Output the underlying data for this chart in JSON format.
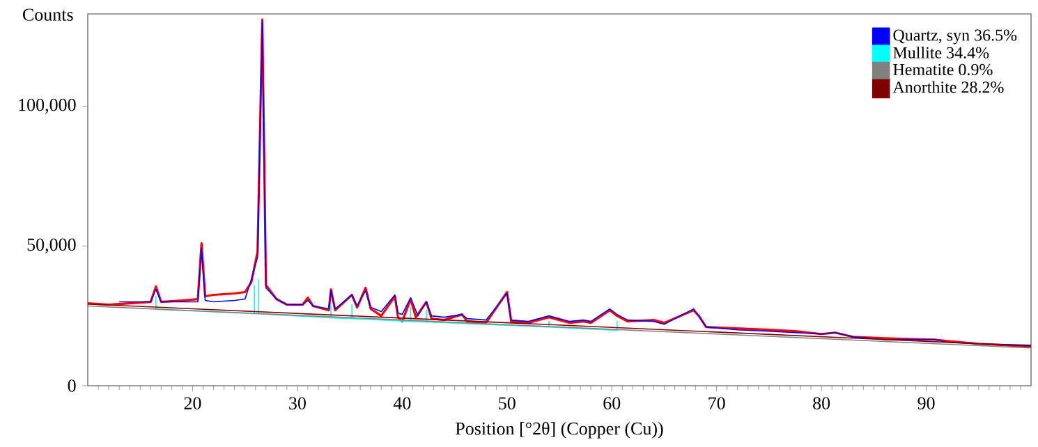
{
  "chart_data": {
    "type": "line",
    "ylabel": "Counts",
    "xlabel": "Position [°2θ] (Copper (Cu))",
    "xlim": [
      10,
      100
    ],
    "xticks": [
      20,
      30,
      40,
      50,
      60,
      70,
      80,
      90
    ],
    "ylim": [
      0,
      133000
    ],
    "yticks": [
      0,
      {
        "value": 50000,
        "label": "50,000"
      },
      {
        "value": 100000,
        "label": "100,000"
      }
    ],
    "legend": "top right",
    "grid": false,
    "marker": "none",
    "line_style": "solid",
    "series": [
      {
        "color": "#ff0000",
        "x": [
          10,
          12,
          14,
          16,
          16.5,
          17,
          19,
          20.5,
          20.85,
          21.2,
          22,
          24,
          25,
          25.6,
          26.2,
          26.65,
          27,
          28,
          29,
          30.5,
          31,
          31.5,
          33,
          33.2,
          33.6,
          35.2,
          35.7,
          36.5,
          37,
          38,
          39.3,
          39.6,
          40,
          40.8,
          41.3,
          42.3,
          42.8,
          44,
          45.7,
          46.2,
          48,
          50,
          50.4,
          52,
          54,
          54.5,
          56,
          57.3,
          58,
          59.8,
          60.5,
          61.5,
          64,
          65,
          67.8,
          68.3,
          69,
          72,
          75,
          77.5,
          80,
          81.3,
          83,
          86,
          90.8,
          92,
          95,
          100
        ],
        "values": [
          29500,
          29000,
          29500,
          30000,
          35500,
          30000,
          30500,
          31000,
          51000,
          32000,
          32500,
          33000,
          33500,
          37000,
          48000,
          131000,
          36000,
          31000,
          29000,
          29000,
          31500,
          28500,
          27000,
          34500,
          27000,
          32500,
          28000,
          35000,
          27500,
          25000,
          32000,
          24500,
          23000,
          31000,
          24500,
          30000,
          24000,
          23500,
          25500,
          23000,
          22500,
          33500,
          23000,
          22500,
          24500,
          24000,
          22500,
          23000,
          22500,
          27000,
          25000,
          23000,
          23500,
          22500,
          27000,
          25000,
          21000,
          20500,
          20000,
          19500,
          18500,
          19000,
          17500,
          17000,
          16500,
          16000,
          15000,
          14000
        ]
      },
      {
        "name": "Quartz, syn 36.5%",
        "color": "#0000ff",
        "x": [
          13,
          16,
          16.5,
          17,
          19,
          20.5,
          20.85,
          21.2,
          22,
          24,
          25,
          25.6,
          26.2,
          26.65,
          27,
          27.5,
          28,
          29,
          30.5,
          31,
          31.5,
          33,
          33.2,
          33.6,
          35.2,
          35.7,
          36.5,
          37,
          38,
          39.3,
          39.6,
          40,
          40.8,
          41.5,
          42.3,
          42.8,
          44,
          45.7,
          46.2,
          48,
          50,
          50.4,
          52,
          54,
          54.5,
          56,
          57.3,
          58,
          59.8,
          60.5,
          61.5,
          64,
          65,
          67.8,
          68.3,
          69,
          72,
          75,
          77.5,
          80,
          81.3,
          83,
          86,
          90.8,
          92,
          95,
          100
        ],
        "values": [
          30000,
          30000,
          34500,
          30000,
          30000,
          30000,
          49000,
          30500,
          30000,
          30500,
          31000,
          38000,
          46000,
          130000,
          35000,
          33000,
          31000,
          29000,
          29000,
          30500,
          28500,
          27500,
          34000,
          27500,
          32500,
          28500,
          34000,
          28000,
          26500,
          32500,
          26000,
          25500,
          31500,
          25000,
          30000,
          25000,
          24500,
          25500,
          24000,
          23500,
          33000,
          23500,
          23000,
          25000,
          24500,
          23000,
          23500,
          23000,
          27500,
          25500,
          23500,
          23000,
          22000,
          27500,
          25000,
          21000,
          20000,
          19500,
          19000,
          18500,
          19000,
          17500,
          16500,
          16500,
          15500,
          15000,
          14500
        ]
      },
      {
        "name": "Mullite 34.4%",
        "color": "#00ffff",
        "x": [
          16.5,
          16.5,
          16.5,
          25.9,
          25.9,
          25.9,
          26.3,
          26.3,
          26.3,
          33.2,
          33.2,
          33.2,
          35.2,
          35.2,
          35.2,
          40.8,
          40.8,
          40.8,
          42.3,
          42.3,
          42.3,
          54,
          54,
          54,
          60.5,
          60.5,
          60.5
        ],
        "values": [
          27400,
          32000,
          27400,
          25800,
          36000,
          25800,
          25700,
          38000,
          25700,
          24300,
          28500,
          24300,
          24000,
          29000,
          24000,
          23000,
          28000,
          23000,
          22800,
          27000,
          22800,
          21000,
          23000,
          21000,
          19800,
          23000,
          19800
        ]
      },
      {
        "name": "Hematite 0.9%",
        "color": "#808080",
        "x": [
          10,
          40,
          70,
          100
        ],
        "values": [
          28500,
          23500,
          18500,
          13500
        ]
      },
      {
        "name": "Anorthite 28.2%",
        "color": "#800000",
        "x": [
          10,
          40,
          70,
          100
        ],
        "values": [
          29200,
          24200,
          19200,
          14200
        ]
      }
    ]
  }
}
